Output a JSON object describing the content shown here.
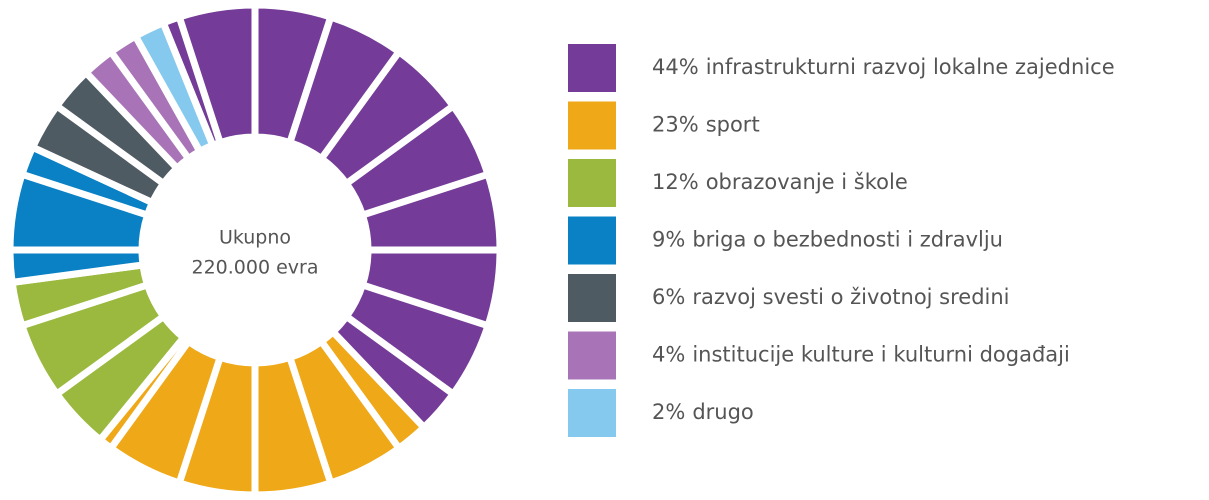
{
  "chart_data": {
    "type": "donut",
    "annotations": [
      "Ukupno",
      "220.000 evra"
    ],
    "categories": [
      "infrastrukturni razvoj lokalne zajednice",
      "sport",
      "obrazovanje i škole",
      "briga o bezbednosti i zdravlju",
      "razvoj svesti o životnoj sredini",
      "institucije kulture i kulturni događaji",
      "drugo"
    ],
    "values": [
      44,
      23,
      12,
      9,
      6,
      4,
      2
    ],
    "value_labels": [
      "44%",
      "23%",
      "12%",
      "9%",
      "6%",
      "4%",
      "2%"
    ],
    "colors": [
      "#743c98",
      "#efa817",
      "#9ab93e",
      "#0a80c5",
      "#4f5b63",
      "#a974b7",
      "#85c9ee"
    ],
    "legend": "right"
  }
}
